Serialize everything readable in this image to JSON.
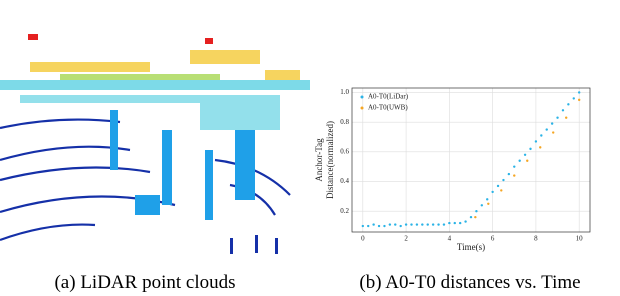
{
  "panels": [
    {
      "caption": "(a) LiDAR point clouds"
    },
    {
      "caption": "(b) A0-T0 distances vs. Time"
    }
  ],
  "chart_data": {
    "type": "scatter",
    "xlabel": "Time(s)",
    "ylabel": [
      "Anchor-Tag",
      "Distance(normalized)"
    ],
    "xlim": [
      -0.5,
      10.5
    ],
    "xticks": [
      0,
      2,
      4,
      6,
      8,
      10
    ],
    "ylim": [
      0.06,
      1.03
    ],
    "yticks": [
      0.2,
      0.4,
      0.6,
      0.8,
      {
        "value": 1,
        "label": "1.0"
      }
    ],
    "grid": true,
    "legend": "upper left",
    "series": [
      {
        "name": "A0-T0(LiDar)",
        "color": "#2bb3e6",
        "x": [
          0,
          0.25,
          0.5,
          0.75,
          1,
          1.25,
          1.5,
          1.75,
          2,
          2.25,
          2.5,
          2.75,
          3,
          3.25,
          3.5,
          3.75,
          4,
          4.25,
          4.5,
          4.75,
          5,
          5.25,
          5.5,
          5.75,
          6,
          6.25,
          6.5,
          6.75,
          7,
          7.25,
          7.5,
          7.75,
          8,
          8.25,
          8.5,
          8.75,
          9,
          9.25,
          9.5,
          9.75,
          10
        ],
        "values": [
          0.1,
          0.1,
          0.11,
          0.1,
          0.1,
          0.11,
          0.11,
          0.1,
          0.11,
          0.11,
          0.11,
          0.11,
          0.11,
          0.11,
          0.11,
          0.11,
          0.12,
          0.12,
          0.12,
          0.13,
          0.16,
          0.2,
          0.24,
          0.28,
          0.33,
          0.37,
          0.41,
          0.45,
          0.5,
          0.54,
          0.58,
          0.62,
          0.67,
          0.71,
          0.75,
          0.79,
          0.83,
          0.88,
          0.92,
          0.96,
          1.0
        ]
      },
      {
        "name": "A0-T0(UWB)",
        "color": "#f5a623",
        "x": [
          5.2,
          5.8,
          6.4,
          7,
          7.6,
          8.2,
          8.8,
          9.4,
          10
        ],
        "values": [
          0.16,
          0.25,
          0.34,
          0.44,
          0.54,
          0.63,
          0.73,
          0.83,
          0.95
        ]
      }
    ]
  }
}
